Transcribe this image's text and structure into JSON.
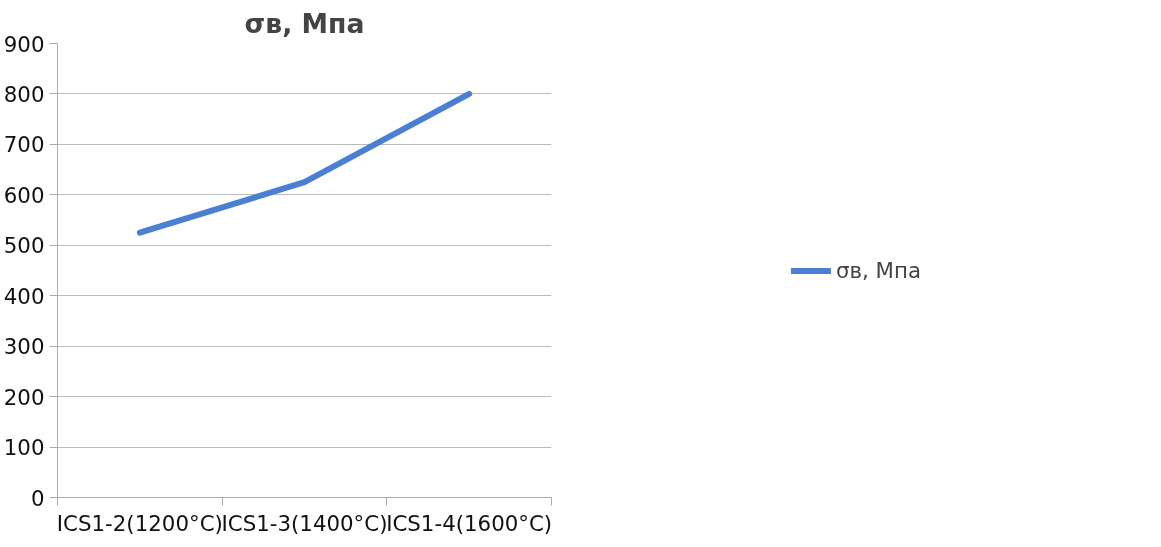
{
  "chart_data": {
    "type": "line",
    "title": "σв, Мпа",
    "categories": [
      "ICS1-2(1200°C)",
      "ICS1-3(1400°C)",
      "ICS1-4(1600°C)"
    ],
    "series": [
      {
        "name": "σв, Мпа",
        "color": "#4a7fd4",
        "values": [
          525,
          625,
          800
        ]
      }
    ],
    "ylim": [
      0,
      900
    ],
    "yticks": [
      0,
      100,
      200,
      300,
      400,
      500,
      600,
      700,
      800,
      900
    ],
    "grid": "y",
    "legend": "right",
    "marker": "none",
    "line_style": "solid"
  }
}
